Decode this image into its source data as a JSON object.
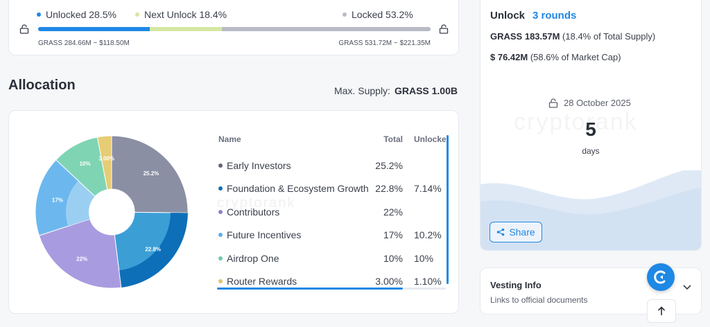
{
  "progress": {
    "unlocked_label": "Unlocked 28.5%",
    "next_unlock_label": "Next Unlock 18.4%",
    "locked_label": "Locked 53.2%",
    "unlocked_fraction": 0.285,
    "next_unlock_fraction": 0.184,
    "locked_fraction": 0.532,
    "left_value": "GRASS 284.66M ~ $118.50M",
    "right_value": "GRASS 531.72M ~ $221.35M",
    "colors": {
      "unlocked": "#1e88e5",
      "next": "#d4e7a0",
      "locked": "#b8bac6"
    }
  },
  "allocation": {
    "title": "Allocation",
    "max_supply_label": "Max. Supply:",
    "max_supply_value": "GRASS 1.00B",
    "headers": {
      "name": "Name",
      "total": "Total",
      "unlocked": "Unlocked"
    },
    "rows": [
      {
        "name": "Early Investors",
        "total": "25.2%",
        "unlocked": "",
        "color": "#5f6478"
      },
      {
        "name": "Foundation & Ecosystem Growth",
        "total": "22.8%",
        "unlocked": "7.14%",
        "color": "#0d6fb8"
      },
      {
        "name": "Contributors",
        "total": "22%",
        "unlocked": "",
        "color": "#8a80cc"
      },
      {
        "name": "Future Incentives",
        "total": "17%",
        "unlocked": "10.2%",
        "color": "#5aaee8"
      },
      {
        "name": "Airdrop One",
        "total": "10%",
        "unlocked": "10%",
        "color": "#6ccaa5"
      },
      {
        "name": "Router Rewards",
        "total": "3.00%",
        "unlocked": "1.10%",
        "color": "#e3c46a"
      }
    ],
    "pie_labels": [
      "25.2%",
      "22.8%",
      "22%",
      "17%",
      "10%",
      "3.00%"
    ],
    "watermark": "cryptorank"
  },
  "unlock": {
    "title": "Unlock",
    "rounds": "3 rounds",
    "amount_bold": "GRASS 183.57M",
    "amount_rest": " (18.4% of Total Supply)",
    "usd_bold": "$ 76.42M",
    "usd_rest": " (58.6% of Market Cap)",
    "date": "28 October 2025",
    "days_number": "5",
    "days_label": "days",
    "share_label": "Share",
    "watermark": "cryptorank"
  },
  "vesting": {
    "title": "Vesting Info",
    "subtitle": "Links to official documents"
  },
  "icons": [
    "lock-icon",
    "share-icon",
    "chevron-down-icon",
    "arrow-up-icon",
    "cryptorank-logo-icon",
    "calendar-icon"
  ]
}
